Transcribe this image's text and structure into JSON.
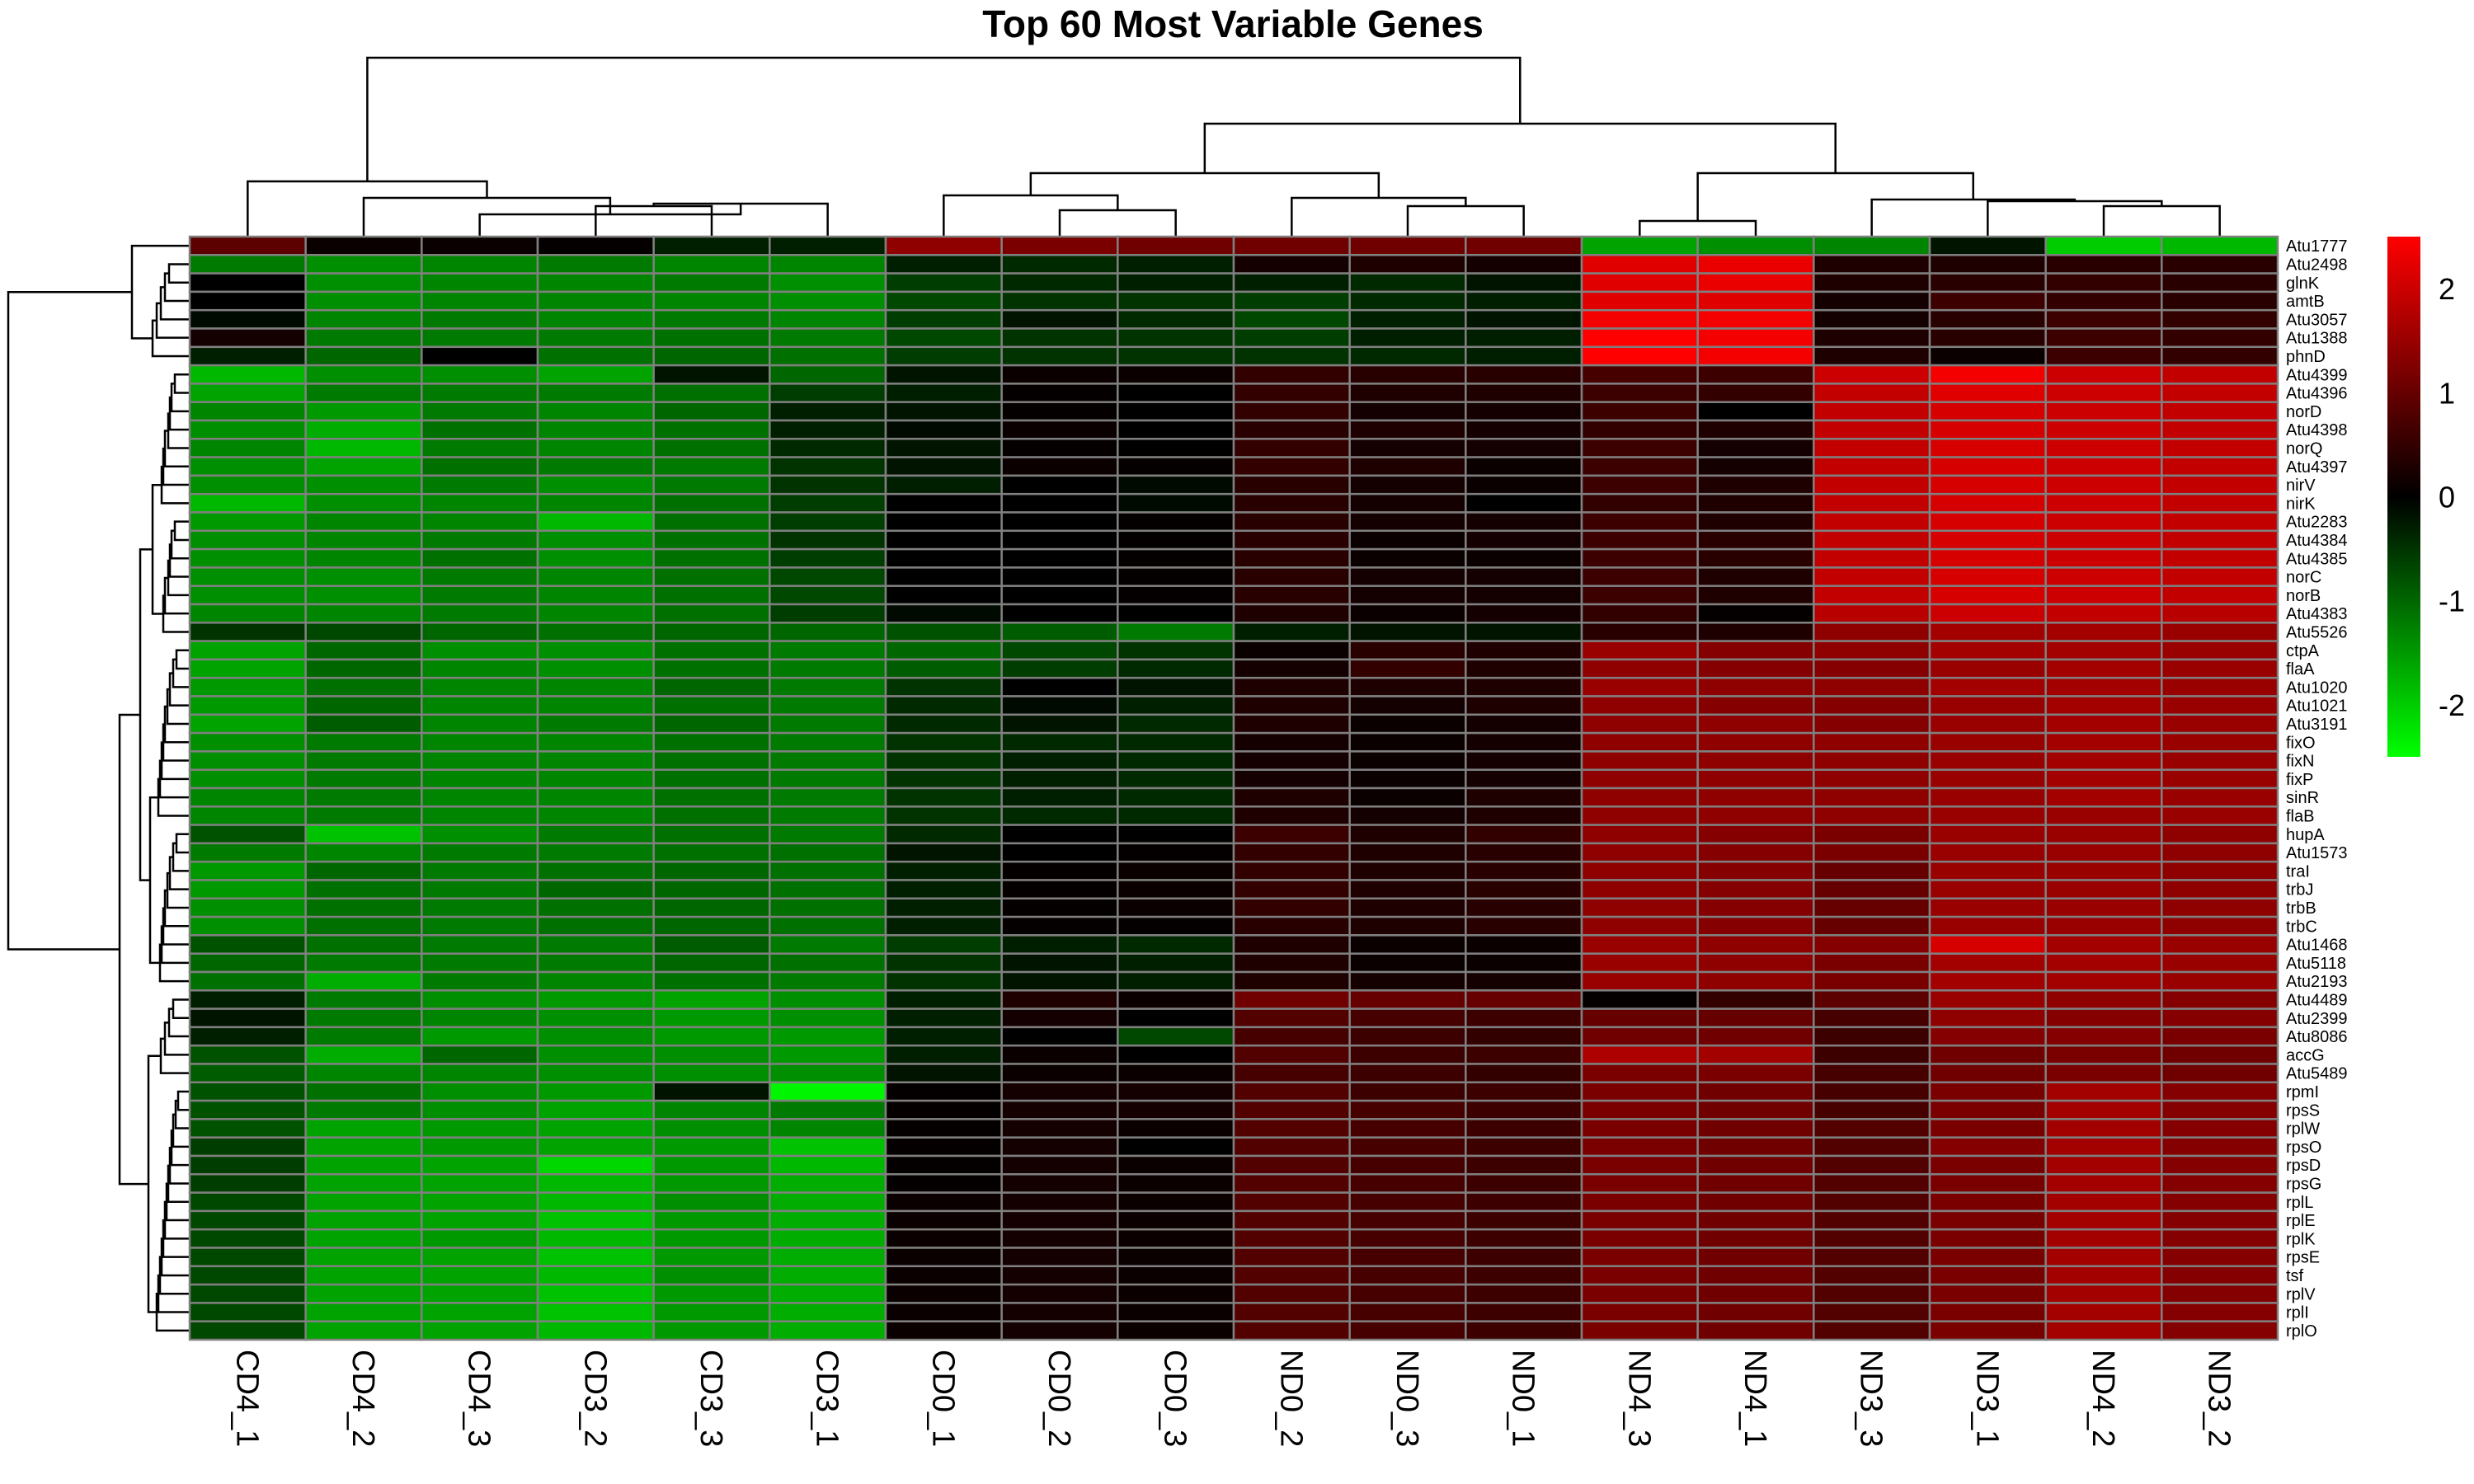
{
  "chart_data": {
    "type": "heatmap",
    "title": "Top 60 Most Variable Genes",
    "columns": [
      "CD4_1",
      "CD4_2",
      "CD4_3",
      "CD3_2",
      "CD3_3",
      "CD3_1",
      "CD0_1",
      "CD0_2",
      "CD0_3",
      "ND0_2",
      "ND0_3",
      "ND0_1",
      "ND4_3",
      "ND4_1",
      "ND3_3",
      "ND3_1",
      "ND4_2",
      "ND3_2"
    ],
    "rows": [
      "Atu1777",
      "Atu2498",
      "glnK",
      "amtB",
      "Atu3057",
      "Atu1388",
      "phnD",
      "Atu4399",
      "Atu4396",
      "norD",
      "Atu4398",
      "norQ",
      "Atu4397",
      "nirV",
      "nirK",
      "Atu2283",
      "Atu4384",
      "Atu4385",
      "norC",
      "norB",
      "Atu4383",
      "Atu5526",
      "ctpA",
      "flaA",
      "Atu1020",
      "Atu1021",
      "Atu3191",
      "fixO",
      "fixN",
      "fixP",
      "sinR",
      "flaB",
      "hupA",
      "Atu1573",
      "traI",
      "trbJ",
      "trbB",
      "trbC",
      "Atu1468",
      "Atu5118",
      "Atu2193",
      "Atu4489",
      "Atu2399",
      "Atu8086",
      "accG",
      "Atu5489",
      "rpmI",
      "rpsS",
      "rplW",
      "rpsO",
      "rpsD",
      "rpsG",
      "rplL",
      "rplE",
      "rplK",
      "rpsE",
      "tsf",
      "rplV",
      "rplI",
      "rplO"
    ],
    "values": [
      [
        0.9,
        0.1,
        0.1,
        0.05,
        -0.3,
        -0.3,
        1.4,
        1.2,
        1.1,
        1.1,
        1.1,
        1.1,
        -1.6,
        -1.4,
        -1.3,
        -0.2,
        -2.0,
        -1.8
      ],
      [
        -1.2,
        -1.4,
        -1.3,
        -1.2,
        -1.3,
        -1.3,
        -0.3,
        -0.4,
        -0.3,
        0.2,
        0.3,
        0.2,
        2.2,
        2.3,
        0.3,
        0.3,
        0.4,
        0.4
      ],
      [
        0.0,
        -1.4,
        -1.3,
        -1.3,
        -1.2,
        -1.4,
        -0.6,
        -0.4,
        -0.3,
        -0.3,
        -0.4,
        -0.2,
        2.2,
        2.3,
        0.3,
        0.4,
        0.5,
        0.4
      ],
      [
        0.0,
        -1.4,
        -1.3,
        -1.3,
        -1.3,
        -1.4,
        -0.7,
        -0.5,
        -0.5,
        -0.6,
        -0.4,
        -0.3,
        2.2,
        2.2,
        0.2,
        0.6,
        0.5,
        0.4
      ],
      [
        -0.1,
        -1.3,
        -1.2,
        -1.3,
        -1.2,
        -1.3,
        -0.6,
        -0.2,
        -0.4,
        -0.7,
        -0.3,
        -0.2,
        2.4,
        2.4,
        0.2,
        0.4,
        0.6,
        0.5
      ],
      [
        0.2,
        -1.2,
        -1.2,
        -1.2,
        -1.1,
        -1.2,
        -0.7,
        -0.5,
        -0.5,
        -0.6,
        -0.3,
        -0.3,
        2.5,
        2.4,
        0.3,
        0.4,
        0.6,
        0.5
      ],
      [
        -0.3,
        -1.0,
        0.0,
        -1.1,
        -1.0,
        -1.1,
        -0.6,
        -0.5,
        -0.5,
        -0.5,
        -0.4,
        -0.3,
        2.5,
        2.4,
        0.3,
        0.1,
        0.6,
        0.5
      ],
      [
        -1.8,
        -1.4,
        -1.4,
        -1.6,
        -0.2,
        -1.0,
        -0.2,
        0.1,
        0.1,
        0.5,
        0.4,
        0.4,
        0.7,
        0.6,
        2.0,
        2.4,
        2.0,
        1.9
      ],
      [
        -1.6,
        -1.2,
        -1.2,
        -1.2,
        -1.1,
        -0.6,
        -0.3,
        0.05,
        0.0,
        0.5,
        0.3,
        0.3,
        0.6,
        0.5,
        1.9,
        2.2,
        2.0,
        1.9
      ],
      [
        -1.3,
        -1.5,
        -1.2,
        -1.3,
        -1.0,
        -0.3,
        -0.2,
        0.05,
        0.0,
        0.5,
        0.2,
        0.2,
        0.6,
        0.0,
        1.9,
        2.1,
        2.0,
        1.9
      ],
      [
        -1.4,
        -1.7,
        -1.1,
        -1.3,
        -1.1,
        -0.3,
        -0.1,
        0.1,
        0.0,
        0.4,
        0.3,
        0.2,
        0.5,
        0.3,
        1.9,
        2.1,
        2.0,
        1.9
      ],
      [
        -1.3,
        -1.8,
        -1.2,
        -1.3,
        -1.1,
        -0.4,
        -0.2,
        0.05,
        0.0,
        0.5,
        0.2,
        0.2,
        0.6,
        0.2,
        1.9,
        2.1,
        2.0,
        1.9
      ],
      [
        -1.4,
        -1.6,
        -1.1,
        -1.2,
        -1.2,
        -0.5,
        -0.2,
        0.1,
        0.05,
        0.5,
        0.3,
        0.1,
        0.6,
        0.2,
        1.9,
        2.1,
        2.0,
        1.9
      ],
      [
        -1.4,
        -1.4,
        -1.2,
        -1.4,
        -1.2,
        -0.5,
        -0.3,
        0.0,
        -0.1,
        0.4,
        0.2,
        0.1,
        0.6,
        0.3,
        1.9,
        2.1,
        2.0,
        1.9
      ],
      [
        -1.8,
        -1.4,
        -1.3,
        -1.3,
        -1.1,
        -0.6,
        0.0,
        0.0,
        -0.1,
        0.4,
        0.2,
        0.0,
        0.5,
        0.3,
        1.9,
        2.1,
        2.0,
        1.9
      ],
      [
        -1.5,
        -1.3,
        -1.3,
        -1.8,
        -1.1,
        -0.6,
        0.0,
        0.0,
        0.05,
        0.4,
        0.2,
        0.2,
        0.6,
        0.3,
        1.9,
        2.1,
        2.0,
        1.9
      ],
      [
        -1.4,
        -1.3,
        -1.2,
        -1.4,
        -1.1,
        -0.5,
        0.0,
        0.0,
        0.05,
        0.4,
        0.1,
        0.2,
        0.6,
        0.4,
        1.9,
        2.1,
        2.0,
        1.9
      ],
      [
        -1.4,
        -1.3,
        -1.1,
        -1.4,
        -1.1,
        -0.6,
        0.0,
        0.0,
        0.05,
        0.4,
        0.1,
        0.1,
        0.6,
        0.4,
        1.9,
        2.1,
        2.0,
        1.9
      ],
      [
        -1.4,
        -1.4,
        -1.2,
        -1.3,
        -1.1,
        -0.7,
        0.0,
        0.0,
        0.05,
        0.4,
        0.2,
        0.2,
        0.6,
        0.3,
        1.9,
        2.1,
        2.0,
        1.9
      ],
      [
        -1.4,
        -1.4,
        -1.2,
        -1.3,
        -1.1,
        -0.7,
        0.0,
        0.0,
        0.05,
        0.4,
        0.2,
        0.2,
        0.6,
        0.3,
        1.9,
        2.1,
        2.0,
        1.9
      ],
      [
        -1.3,
        -1.3,
        -1.2,
        -1.3,
        -1.1,
        -0.6,
        -0.1,
        0.0,
        0.0,
        0.3,
        0.1,
        0.2,
        0.5,
        0.05,
        1.8,
        2.0,
        1.9,
        1.8
      ],
      [
        -0.5,
        -0.7,
        -1.0,
        -1.1,
        -1.0,
        -1.0,
        -0.8,
        -0.9,
        -1.2,
        -0.3,
        -0.2,
        -0.2,
        0.4,
        0.3,
        1.4,
        1.6,
        1.6,
        1.5
      ],
      [
        -1.6,
        -1.0,
        -1.4,
        -1.4,
        -1.1,
        -1.2,
        -1.0,
        -0.7,
        -0.5,
        0.1,
        0.4,
        0.3,
        1.5,
        1.3,
        1.4,
        1.6,
        1.6,
        1.5
      ],
      [
        -1.6,
        -1.0,
        -1.3,
        -1.4,
        -1.1,
        -1.2,
        -0.9,
        -0.6,
        -0.4,
        0.2,
        0.5,
        0.3,
        1.4,
        1.3,
        1.3,
        1.5,
        1.6,
        1.5
      ],
      [
        -1.5,
        -1.1,
        -1.3,
        -1.3,
        -1.0,
        -1.2,
        -0.5,
        0.0,
        -0.2,
        0.3,
        0.3,
        0.3,
        1.5,
        1.4,
        1.4,
        1.6,
        1.6,
        1.5
      ],
      [
        -1.5,
        -1.0,
        -1.3,
        -1.3,
        -1.1,
        -1.2,
        -0.4,
        -0.1,
        -0.3,
        0.3,
        0.2,
        0.3,
        1.4,
        1.3,
        1.3,
        1.5,
        1.6,
        1.5
      ],
      [
        -1.6,
        -0.9,
        -1.3,
        -1.2,
        -1.0,
        -1.2,
        -0.4,
        -0.2,
        -0.4,
        0.3,
        0.1,
        0.2,
        1.4,
        1.4,
        1.3,
        1.5,
        1.6,
        1.5
      ],
      [
        -1.4,
        -1.2,
        -1.3,
        -1.3,
        -1.1,
        -1.2,
        -0.5,
        -0.4,
        -0.4,
        0.2,
        0.1,
        0.2,
        1.4,
        1.4,
        1.4,
        1.5,
        1.6,
        1.5
      ],
      [
        -1.4,
        -1.2,
        -1.3,
        -1.3,
        -1.1,
        -1.2,
        -0.5,
        -0.3,
        -0.4,
        0.2,
        0.1,
        0.2,
        1.4,
        1.4,
        1.4,
        1.5,
        1.6,
        1.5
      ],
      [
        -1.4,
        -1.2,
        -1.3,
        -1.3,
        -1.1,
        -1.2,
        -0.5,
        -0.3,
        -0.4,
        0.2,
        0.1,
        0.2,
        1.4,
        1.4,
        1.4,
        1.5,
        1.6,
        1.5
      ],
      [
        -1.3,
        -1.2,
        -1.3,
        -1.3,
        -1.1,
        -1.2,
        -0.5,
        -0.3,
        -0.4,
        0.3,
        0.1,
        0.3,
        1.4,
        1.4,
        1.4,
        1.5,
        1.6,
        1.5
      ],
      [
        -1.3,
        -1.2,
        -1.3,
        -1.3,
        -1.1,
        -1.2,
        -0.5,
        -0.4,
        -0.4,
        0.3,
        0.2,
        0.3,
        1.4,
        1.4,
        1.4,
        1.5,
        1.5,
        1.5
      ],
      [
        -0.8,
        -1.9,
        -1.4,
        -1.2,
        -1.1,
        -1.2,
        -0.4,
        0.0,
        0.0,
        0.6,
        0.3,
        0.5,
        1.4,
        1.3,
        1.2,
        1.5,
        1.5,
        1.4
      ],
      [
        -1.2,
        -1.3,
        -1.2,
        -1.2,
        -1.1,
        -1.1,
        -0.2,
        0.0,
        0.05,
        0.5,
        0.3,
        0.4,
        1.4,
        1.3,
        1.2,
        1.5,
        1.5,
        1.4
      ],
      [
        -1.5,
        -1.0,
        -1.2,
        -1.1,
        -1.0,
        -1.1,
        -0.3,
        0.05,
        0.1,
        0.5,
        0.3,
        0.4,
        1.4,
        1.3,
        1.0,
        1.5,
        1.5,
        1.4
      ],
      [
        -1.5,
        -1.1,
        -1.2,
        -1.0,
        -1.0,
        -1.1,
        -0.3,
        0.05,
        0.1,
        0.5,
        0.3,
        0.4,
        1.4,
        1.3,
        1.0,
        1.5,
        1.5,
        1.4
      ],
      [
        -1.4,
        -1.1,
        -1.2,
        -1.1,
        -1.0,
        -1.1,
        -0.3,
        0.05,
        0.1,
        0.5,
        0.3,
        0.4,
        1.4,
        1.3,
        1.0,
        1.5,
        1.5,
        1.4
      ],
      [
        -1.4,
        -1.1,
        -1.2,
        -1.1,
        -1.0,
        -1.1,
        -0.3,
        0.05,
        0.05,
        0.4,
        0.3,
        0.4,
        1.4,
        1.3,
        1.0,
        1.5,
        1.5,
        1.4
      ],
      [
        -0.8,
        -1.1,
        -1.2,
        -1.2,
        -0.9,
        -1.2,
        -0.6,
        -0.3,
        -0.4,
        0.3,
        0.1,
        0.1,
        1.5,
        1.4,
        1.3,
        2.1,
        1.6,
        1.5
      ],
      [
        -1.0,
        -1.2,
        -1.2,
        -1.2,
        -1.0,
        -1.1,
        -0.5,
        -0.2,
        -0.3,
        0.3,
        0.1,
        0.1,
        1.5,
        1.4,
        1.2,
        1.6,
        1.6,
        1.5
      ],
      [
        -1.1,
        -1.7,
        -1.2,
        -1.3,
        -1.1,
        -1.2,
        -0.5,
        -0.2,
        -0.3,
        0.3,
        0.2,
        0.2,
        1.5,
        1.4,
        1.2,
        1.6,
        1.6,
        1.5
      ],
      [
        -0.3,
        -1.2,
        -1.4,
        -1.5,
        -1.6,
        -1.4,
        -0.3,
        0.3,
        0.1,
        1.1,
        1.0,
        1.0,
        0.05,
        0.5,
        0.9,
        1.5,
        1.4,
        1.3
      ],
      [
        -0.2,
        -1.2,
        -1.3,
        -1.4,
        -1.5,
        -1.4,
        -0.3,
        0.2,
        0.0,
        0.8,
        0.7,
        0.6,
        1.0,
        1.0,
        0.7,
        1.4,
        1.3,
        1.3
      ],
      [
        -0.3,
        -1.2,
        -1.5,
        -1.4,
        -1.5,
        -1.5,
        -0.3,
        0.0,
        -0.7,
        0.7,
        0.6,
        0.5,
        1.1,
        1.1,
        0.6,
        1.3,
        1.3,
        1.2
      ],
      [
        -0.8,
        -1.7,
        -1.0,
        -1.4,
        -1.4,
        -1.5,
        -0.3,
        0.1,
        0.0,
        0.8,
        0.6,
        0.6,
        1.7,
        1.6,
        0.6,
        1.1,
        1.2,
        1.1
      ],
      [
        -0.9,
        -1.3,
        -1.3,
        -1.4,
        -1.4,
        -1.4,
        -0.2,
        0.1,
        0.1,
        0.7,
        0.6,
        0.5,
        1.2,
        1.2,
        0.7,
        1.1,
        1.2,
        1.1
      ],
      [
        -0.8,
        -1.1,
        -1.4,
        -1.5,
        -0.2,
        -2.4,
        0.05,
        0.2,
        0.2,
        0.8,
        0.6,
        0.6,
        1.2,
        1.1,
        0.7,
        1.2,
        1.6,
        1.3
      ],
      [
        -0.8,
        -1.2,
        -1.4,
        -1.6,
        -1.3,
        -1.2,
        0.05,
        0.2,
        0.2,
        0.8,
        0.7,
        0.6,
        1.2,
        1.1,
        0.7,
        1.2,
        1.6,
        1.3
      ],
      [
        -0.8,
        -1.6,
        -1.5,
        -1.6,
        -1.4,
        -1.3,
        0.05,
        0.2,
        0.1,
        0.8,
        0.7,
        0.6,
        1.2,
        1.1,
        0.8,
        1.2,
        1.6,
        1.3
      ],
      [
        -0.6,
        -1.6,
        -1.5,
        -1.6,
        -1.5,
        -1.9,
        0.05,
        0.2,
        0.0,
        0.8,
        0.7,
        0.6,
        1.2,
        1.1,
        0.8,
        1.3,
        1.6,
        1.3
      ],
      [
        -0.6,
        -1.6,
        -1.6,
        -2.1,
        -1.5,
        -1.8,
        0.05,
        0.2,
        0.1,
        0.8,
        0.7,
        0.6,
        1.2,
        1.1,
        0.8,
        1.2,
        1.6,
        1.3
      ],
      [
        -0.6,
        -1.6,
        -1.6,
        -1.8,
        -1.5,
        -1.7,
        0.05,
        0.2,
        0.1,
        0.8,
        0.7,
        0.6,
        1.2,
        1.1,
        0.8,
        1.2,
        1.6,
        1.3
      ],
      [
        -0.7,
        -1.6,
        -1.6,
        -1.8,
        -1.4,
        -1.7,
        0.1,
        0.2,
        0.1,
        0.8,
        0.7,
        0.6,
        1.2,
        1.1,
        0.8,
        1.2,
        1.6,
        1.3
      ],
      [
        -0.7,
        -1.6,
        -1.6,
        -1.9,
        -1.5,
        -1.7,
        0.1,
        0.2,
        0.1,
        0.8,
        0.7,
        0.6,
        1.2,
        1.1,
        0.8,
        1.2,
        1.6,
        1.3
      ],
      [
        -0.7,
        -1.6,
        -1.5,
        -1.8,
        -1.5,
        -1.7,
        0.1,
        0.2,
        0.1,
        0.8,
        0.7,
        0.6,
        1.2,
        1.1,
        0.8,
        1.2,
        1.6,
        1.3
      ],
      [
        -0.7,
        -1.6,
        -1.6,
        -1.9,
        -1.5,
        -1.7,
        0.1,
        0.2,
        0.1,
        0.8,
        0.7,
        0.6,
        1.2,
        1.1,
        0.8,
        1.2,
        1.6,
        1.3
      ],
      [
        -0.7,
        -1.6,
        -1.6,
        -1.8,
        -1.4,
        -1.7,
        0.1,
        0.2,
        0.1,
        0.8,
        0.7,
        0.6,
        1.2,
        1.1,
        0.8,
        1.2,
        1.6,
        1.3
      ],
      [
        -0.7,
        -1.6,
        -1.6,
        -1.9,
        -1.5,
        -1.7,
        0.1,
        0.2,
        0.1,
        0.8,
        0.7,
        0.6,
        1.2,
        1.1,
        0.8,
        1.2,
        1.6,
        1.3
      ],
      [
        -0.7,
        -1.6,
        -1.6,
        -1.9,
        -1.5,
        -1.7,
        0.1,
        0.2,
        0.1,
        0.8,
        0.7,
        0.6,
        1.2,
        1.1,
        0.8,
        1.2,
        1.6,
        1.3
      ],
      [
        -0.7,
        -1.6,
        -1.6,
        -1.8,
        -1.5,
        -1.7,
        0.1,
        0.2,
        0.1,
        0.8,
        0.7,
        0.6,
        1.2,
        1.1,
        0.8,
        1.2,
        1.6,
        1.3
      ]
    ],
    "color_scale": {
      "low": "#00ff00",
      "mid": "#000000",
      "high": "#ff0000",
      "min": -2.5,
      "max": 2.5
    },
    "legend": {
      "ticks": [
        2,
        1,
        0,
        -1,
        -2
      ],
      "tick_labels": [
        "2",
        "1",
        "0",
        "-1",
        "-2"
      ],
      "placement": "right"
    },
    "column_dendrogram": "top",
    "row_dendrogram": "left",
    "cell_border_color": "#808080"
  }
}
